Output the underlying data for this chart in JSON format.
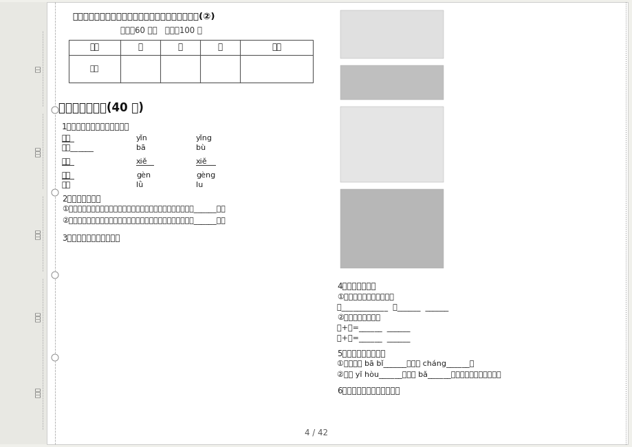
{
  "bg_color": "#f0f0eb",
  "page_bg": "#ffffff",
  "title": "一年级精选同步上学期小学语文六单元真题模拟试卷(②)",
  "subtitle": "时间：60 分钟   满分：100 分",
  "table_headers": [
    "题号",
    "一",
    "二",
    "三",
    "总分"
  ],
  "table_row2_label": "得分",
  "section1_title": "一、积累与运用(40 分)",
  "q1_title": "1．给划线的字选择正确的读音",
  "q2_title": "2．按要求写字。",
  "q2_lines": [
    "①在部编版一年级上册第六单元中，按从左到右规划书写的汉字有______等。",
    "②在部编版一年级上册第六单元中，按从上到下规划书写的汉字有______等。"
  ],
  "q3_title": "3．看图，选择正确的读音",
  "q4_title": "4．汉字加减法。",
  "q4_line1": "①加一笔成新字，再组词。",
  "q4_line2a": "问",
  "q4_line2b": "云",
  "q4_line3": "②部件相加再组词。",
  "q4_line4": "门+口=______  ______",
  "q4_line5": "才+巴=______  ______",
  "q5_title": "5．读句子，写字词。",
  "q5_line1": "①猴子的尾 bā bǐ______兔子的 cháng______！",
  "q5_line2": "②从今 yǐ hòu______，我会 bǎ______老师的话牢牢记在心里。",
  "q6_title": "6．看图，把句子补充完整。",
  "left_labels": [
    "号：",
    "考场：",
    "姓名：",
    "班级：",
    "学校："
  ],
  "page_num": "4 / 42"
}
